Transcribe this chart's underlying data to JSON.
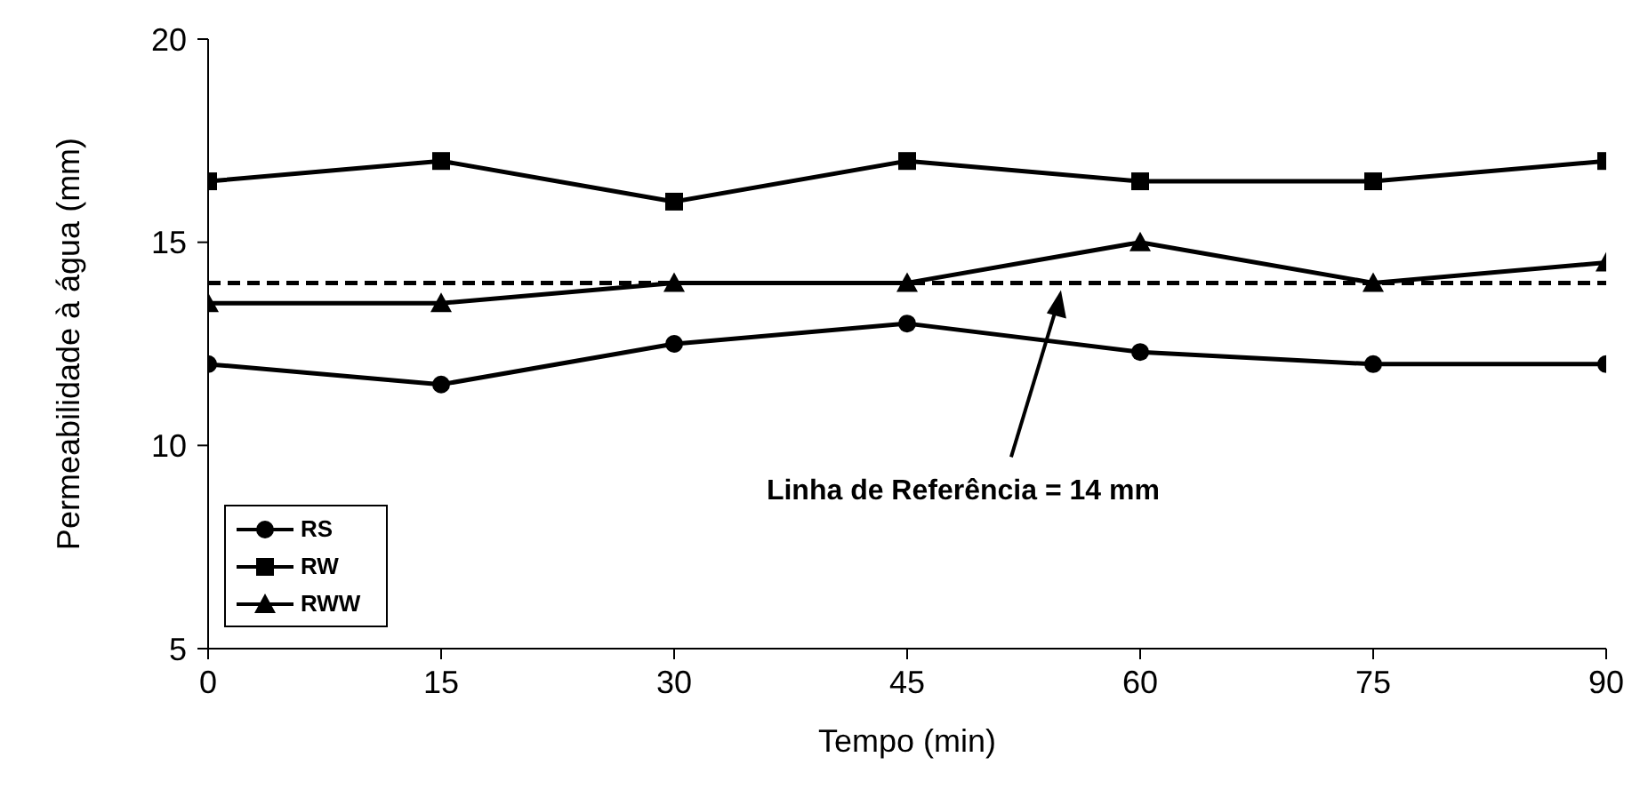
{
  "chart_data": {
    "type": "line",
    "xlabel": "Tempo (min)",
    "ylabel": "Permeabilidade à água (mm)",
    "x": [
      0,
      15,
      30,
      45,
      60,
      75,
      90
    ],
    "xlim": [
      0,
      90
    ],
    "xticks": [
      0,
      15,
      30,
      45,
      60,
      75,
      90
    ],
    "ylim": [
      5,
      20
    ],
    "yticks": [
      5,
      10,
      15,
      20
    ],
    "series": [
      {
        "name": "RS",
        "color": "#000000",
        "marker": "circle",
        "values": [
          12,
          11.5,
          12.5,
          13,
          12.3,
          12,
          12
        ]
      },
      {
        "name": "RW",
        "color": "#000000",
        "marker": "square",
        "values": [
          16.5,
          17,
          16,
          17,
          16.5,
          16.5,
          17
        ]
      },
      {
        "name": "RWW",
        "color": "#000000",
        "marker": "triangle",
        "values": [
          13.5,
          13.5,
          14,
          14,
          15,
          14,
          14.5
        ]
      }
    ],
    "ref_lines": [
      {
        "axis": "y",
        "value": 14,
        "color": "#000000",
        "line_style": "dashed"
      }
    ],
    "annotations": [
      "Linha de Referência = 14 mm"
    ],
    "grid": false,
    "legend": "bottom left",
    "line_style": "solid"
  }
}
